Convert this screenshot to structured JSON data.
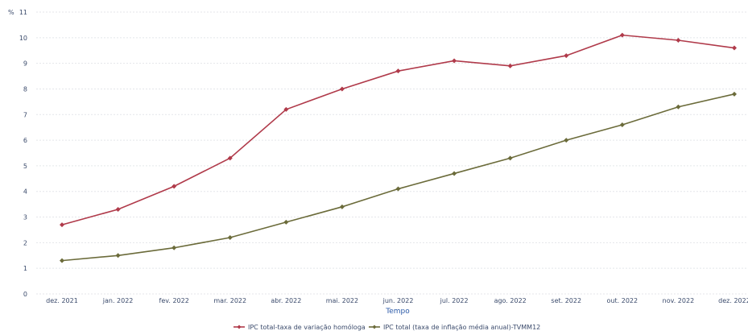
{
  "chart_data": {
    "type": "line",
    "ylabel": "%",
    "xlabel": "Tempo",
    "ylim": [
      0,
      11
    ],
    "yticks": [
      "0",
      "1",
      "2",
      "3",
      "4",
      "5",
      "6",
      "7",
      "8",
      "9",
      "10",
      "11"
    ],
    "categories": [
      "dez. 2021",
      "jan. 2022",
      "fev. 2022",
      "mar. 2022",
      "abr. 2022",
      "mai. 2022",
      "jun. 2022",
      "jul. 2022",
      "ago. 2022",
      "set. 2022",
      "out. 2022",
      "nov. 2022",
      "dez. 2022"
    ],
    "grid": true,
    "legend_position": "bottom",
    "series": [
      {
        "name": "IPC total-taxa de variação homóloga",
        "color": "#b03a4a",
        "values": [
          2.7,
          3.3,
          4.2,
          5.3,
          7.2,
          8.0,
          8.7,
          9.1,
          8.9,
          9.3,
          10.1,
          9.9,
          9.6
        ]
      },
      {
        "name": "IPC total (taxa de inflação média anual)-TVMM12",
        "color": "#6b6b3a",
        "values": [
          1.3,
          1.5,
          1.8,
          2.2,
          2.8,
          3.4,
          4.1,
          4.7,
          5.3,
          6.0,
          6.6,
          7.3,
          7.8
        ]
      }
    ]
  }
}
